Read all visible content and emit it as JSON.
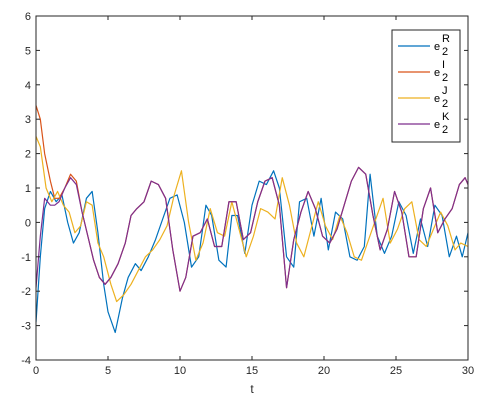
{
  "chart_data": {
    "type": "line",
    "xlabel": "t",
    "ylabel": "",
    "title": "",
    "xlim": [
      0,
      30
    ],
    "ylim": [
      -4,
      6
    ],
    "xticks": [
      0,
      5,
      10,
      15,
      20,
      25,
      30
    ],
    "yticks": [
      -4,
      -3,
      -2,
      -1,
      0,
      1,
      2,
      3,
      4,
      5,
      6
    ],
    "grid": false,
    "legend_position": "top-right",
    "series": [
      {
        "name": "e2R",
        "legend": {
          "base": "e",
          "sub": "2",
          "sup": "R"
        },
        "color": "#0072BD",
        "x": [
          0,
          0.3,
          0.6,
          1.0,
          1.4,
          1.8,
          2.2,
          2.6,
          3.0,
          3.5,
          3.9,
          4.3,
          4.7,
          5.0,
          5.5,
          6.0,
          6.4,
          6.9,
          7.3,
          7.8,
          8.3,
          8.8,
          9.3,
          9.8,
          10.3,
          10.8,
          11.3,
          11.8,
          12.2,
          12.7,
          13.2,
          13.6,
          14.0,
          14.5,
          15.0,
          15.5,
          16.0,
          16.5,
          16.9,
          17.4,
          17.9,
          18.3,
          18.8,
          19.3,
          19.8,
          20.3,
          20.8,
          21.3,
          21.8,
          22.3,
          22.8,
          23.2,
          23.7,
          24.2,
          24.7,
          25.2,
          25.7,
          26.2,
          26.7,
          27.2,
          27.7,
          28.2,
          28.7,
          29.2,
          29.6,
          30.0
        ],
        "y": [
          -2.9,
          -1.0,
          0.4,
          0.9,
          0.6,
          0.8,
          0.0,
          -0.6,
          -0.3,
          0.7,
          0.9,
          -0.3,
          -1.8,
          -2.6,
          -3.2,
          -2.2,
          -1.6,
          -1.2,
          -1.4,
          -1.0,
          -0.5,
          0.1,
          0.7,
          0.8,
          0.0,
          -1.3,
          -1.0,
          0.5,
          0.2,
          -1.1,
          -1.3,
          0.2,
          0.2,
          -0.9,
          0.5,
          1.2,
          1.1,
          1.5,
          1.0,
          -1.0,
          -1.3,
          0.6,
          0.7,
          -0.4,
          0.7,
          -0.8,
          0.3,
          0.1,
          -1.0,
          -1.1,
          -0.7,
          1.4,
          -0.4,
          -0.9,
          -0.4,
          0.6,
          0.2,
          -0.9,
          0.1,
          -0.7,
          0.5,
          0.2,
          -1.0,
          -0.4,
          -1.0,
          -0.3
        ]
      },
      {
        "name": "e2I",
        "legend": {
          "base": "e",
          "sub": "2",
          "sup": "I"
        },
        "color": "#D95319",
        "x": [
          0,
          0.3,
          0.6,
          1.0,
          1.3,
          1.6,
          2.0,
          2.4,
          2.8,
          3.2,
          3.6,
          4.0,
          4.4,
          4.8,
          5.2,
          5.7,
          6.2,
          6.6,
          7.0,
          7.5,
          8.0,
          8.5,
          9.0,
          9.5,
          10.0,
          10.4,
          10.9,
          11.4,
          11.9,
          12.4,
          12.9,
          13.4,
          13.9,
          14.4,
          14.9,
          15.4,
          15.9,
          16.4,
          16.9,
          17.4,
          17.9,
          18.4,
          18.9,
          19.4,
          19.9,
          20.4,
          20.9,
          21.4,
          21.9,
          22.4,
          22.9,
          23.4,
          23.9,
          24.4,
          24.9,
          25.4,
          25.9,
          26.4,
          26.9,
          27.4,
          27.9,
          28.4,
          28.9,
          29.4,
          29.8,
          30.0
        ],
        "y": [
          3.4,
          3.0,
          2.0,
          1.2,
          0.7,
          0.7,
          1.0,
          1.4,
          1.2,
          0.3,
          -0.4,
          -1.1,
          -1.6,
          -1.8,
          -1.6,
          -1.2,
          -0.6,
          0.2,
          0.4,
          0.6,
          1.2,
          1.1,
          0.7,
          -0.8,
          -2.0,
          -1.6,
          -0.4,
          -0.3,
          0.1,
          -0.7,
          -0.7,
          0.6,
          0.6,
          -0.5,
          -0.3,
          0.6,
          1.2,
          1.3,
          0.5,
          -1.9,
          -0.5,
          0.3,
          0.9,
          0.4,
          -0.4,
          -0.6,
          -0.2,
          0.5,
          1.2,
          1.6,
          1.4,
          0.2,
          -0.8,
          -0.2,
          0.9,
          0.3,
          -1.0,
          -1.0,
          0.4,
          1.0,
          -0.3,
          0.1,
          0.4,
          1.1,
          1.3,
          1.1
        ]
      },
      {
        "name": "e2J",
        "legend": {
          "base": "e",
          "sub": "2",
          "sup": "J"
        },
        "color": "#EDB120",
        "x": [
          0,
          0.3,
          0.7,
          1.1,
          1.5,
          1.9,
          2.3,
          2.7,
          3.1,
          3.5,
          3.9,
          4.3,
          4.7,
          5.2,
          5.6,
          6.1,
          6.6,
          7.1,
          7.6,
          8.1,
          8.6,
          9.1,
          9.6,
          10.1,
          10.6,
          11.1,
          11.6,
          12.1,
          12.6,
          13.1,
          13.6,
          14.1,
          14.6,
          15.1,
          15.6,
          16.1,
          16.6,
          17.1,
          17.6,
          18.1,
          18.6,
          19.1,
          19.6,
          20.1,
          20.6,
          21.1,
          21.6,
          22.1,
          22.6,
          23.1,
          23.6,
          24.1,
          24.6,
          25.1,
          25.6,
          26.1,
          26.6,
          27.1,
          27.6,
          28.1,
          28.6,
          29.1,
          29.5,
          30.0
        ],
        "y": [
          2.5,
          2.2,
          1.0,
          0.6,
          0.9,
          0.5,
          0.3,
          -0.3,
          -0.1,
          0.6,
          0.5,
          -0.6,
          -1.0,
          -1.8,
          -2.3,
          -2.1,
          -1.8,
          -1.4,
          -1.0,
          -0.8,
          -0.5,
          -0.1,
          0.8,
          1.5,
          0.0,
          -1.1,
          -0.6,
          0.4,
          -0.3,
          -0.4,
          0.6,
          -0.2,
          -1.0,
          -0.4,
          0.4,
          0.3,
          0.1,
          1.3,
          0.5,
          -0.6,
          -1.0,
          -0.2,
          0.6,
          -0.1,
          -0.5,
          0.2,
          -0.3,
          -1.0,
          -1.1,
          -0.5,
          0.1,
          0.7,
          -0.6,
          -0.2,
          0.4,
          0.6,
          -0.5,
          -0.7,
          -0.2,
          0.3,
          -0.1,
          -0.8,
          -0.6,
          -0.7
        ]
      },
      {
        "name": "e2K",
        "legend": {
          "base": "e",
          "sub": "2",
          "sup": "K"
        },
        "color": "#7E2F8E",
        "x": [
          0,
          0.3,
          0.6,
          1.0,
          1.3,
          1.6,
          2.0,
          2.4,
          2.8,
          3.2,
          3.6,
          4.0,
          4.4,
          4.8,
          5.2,
          5.7,
          6.2,
          6.6,
          7.0,
          7.5,
          8.0,
          8.5,
          9.0,
          9.5,
          10.0,
          10.4,
          10.9,
          11.4,
          11.9,
          12.4,
          12.9,
          13.4,
          13.9,
          14.4,
          14.9,
          15.4,
          15.9,
          16.4,
          16.9,
          17.4,
          17.9,
          18.4,
          18.9,
          19.4,
          19.9,
          20.4,
          20.9,
          21.4,
          21.9,
          22.4,
          22.9,
          23.4,
          23.9,
          24.4,
          24.9,
          25.4,
          25.9,
          26.4,
          26.9,
          27.4,
          27.9,
          28.4,
          28.9,
          29.4,
          29.8,
          30.0
        ],
        "y": [
          -1.9,
          -0.4,
          0.7,
          0.5,
          0.5,
          0.6,
          1.0,
          1.3,
          1.1,
          0.3,
          -0.4,
          -1.1,
          -1.6,
          -1.8,
          -1.6,
          -1.2,
          -0.6,
          0.2,
          0.4,
          0.6,
          1.2,
          1.1,
          0.7,
          -0.8,
          -2.0,
          -1.6,
          -0.4,
          -0.3,
          0.1,
          -0.7,
          -0.7,
          0.6,
          0.6,
          -0.5,
          -0.3,
          0.6,
          1.2,
          1.3,
          0.5,
          -1.9,
          -0.5,
          0.3,
          0.9,
          0.4,
          -0.4,
          -0.6,
          -0.2,
          0.5,
          1.2,
          1.6,
          1.4,
          0.2,
          -0.8,
          -0.2,
          0.9,
          0.3,
          -1.0,
          -1.0,
          0.4,
          1.0,
          -0.3,
          0.1,
          0.4,
          1.1,
          1.3,
          1.1
        ]
      }
    ]
  }
}
